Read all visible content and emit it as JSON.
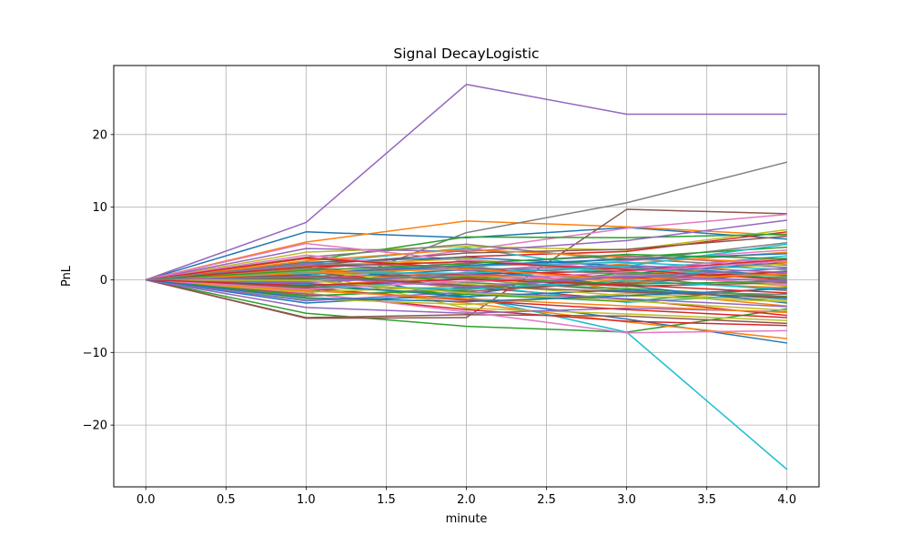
{
  "chart_data": {
    "type": "line",
    "title": "Signal DecayLogistic",
    "xlabel": "minute",
    "ylabel": "PnL",
    "x": [
      0,
      1,
      2,
      3,
      4
    ],
    "xlim": [
      -0.2,
      4.2
    ],
    "ylim": [
      -28.5,
      29.5
    ],
    "xticks": [
      0.0,
      0.5,
      1.0,
      1.5,
      2.0,
      2.5,
      3.0,
      3.5,
      4.0
    ],
    "xtick_labels": [
      "0.0",
      "0.5",
      "1.0",
      "1.5",
      "2.0",
      "2.5",
      "3.0",
      "3.5",
      "4.0"
    ],
    "yticks": [
      -20,
      -10,
      0,
      10,
      20
    ],
    "ytick_labels": [
      "−20",
      "−10",
      "0",
      "10",
      "20"
    ],
    "grid": true,
    "legend": false,
    "palette": [
      "#1f77b4",
      "#ff7f0e",
      "#2ca02c",
      "#d62728",
      "#9467bd",
      "#8c564b",
      "#e377c2",
      "#7f7f7f",
      "#bcbd22",
      "#17becf"
    ],
    "series": [
      {
        "color": "#1f77b4",
        "values": [
          0,
          6.6,
          5.8,
          7.2,
          5.6
        ]
      },
      {
        "color": "#ff7f0e",
        "values": [
          0,
          5.2,
          8.1,
          7.3,
          6.1
        ]
      },
      {
        "color": "#2ca02c",
        "values": [
          0,
          -4.6,
          -6.4,
          -7.2,
          -4.0
        ]
      },
      {
        "color": "#d62728",
        "values": [
          0,
          1.5,
          3.2,
          3.9,
          6.6
        ]
      },
      {
        "color": "#9467bd",
        "values": [
          0,
          7.9,
          26.9,
          22.8,
          22.8
        ]
      },
      {
        "color": "#8c564b",
        "values": [
          0,
          -5.3,
          -5.2,
          9.7,
          9.1
        ]
      },
      {
        "color": "#e377c2",
        "values": [
          0,
          1.2,
          4.1,
          7.1,
          9.0
        ]
      },
      {
        "color": "#7f7f7f",
        "values": [
          0,
          -2.1,
          6.5,
          10.6,
          16.2
        ]
      },
      {
        "color": "#bcbd22",
        "values": [
          0,
          3.8,
          4.6,
          4.1,
          6.9
        ]
      },
      {
        "color": "#17becf",
        "values": [
          0,
          -2.8,
          -2.3,
          -7.2,
          -26.1
        ]
      },
      {
        "color": "#1f77b4",
        "values": [
          0,
          1.5,
          -2.6,
          -5.4,
          -8.7
        ]
      },
      {
        "color": "#ff7f0e",
        "values": [
          0,
          -1.0,
          -3.2,
          -5.8,
          -8.1
        ]
      },
      {
        "color": "#2ca02c",
        "values": [
          0,
          2.6,
          5.9,
          5.8,
          6.3
        ]
      },
      {
        "color": "#d62728",
        "values": [
          0,
          -1.9,
          -4.1,
          -5.7,
          -6.3
        ]
      },
      {
        "color": "#9467bd",
        "values": [
          0,
          4.3,
          3.9,
          5.4,
          8.2
        ]
      },
      {
        "color": "#8c564b",
        "values": [
          0,
          -5.2,
          -4.8,
          -5.0,
          -6.0
        ]
      },
      {
        "color": "#e377c2",
        "values": [
          0,
          -1.8,
          -4.4,
          -7.3,
          -7.0
        ]
      },
      {
        "color": "#7f7f7f",
        "values": [
          0,
          3.1,
          4.9,
          2.6,
          5.1
        ]
      },
      {
        "color": "#bcbd22",
        "values": [
          0,
          1.0,
          -3.9,
          -4.7,
          -5.6
        ]
      },
      {
        "color": "#17becf",
        "values": [
          0,
          2.2,
          4.4,
          1.3,
          3.3
        ]
      },
      {
        "color": "#1f77b4",
        "values": [
          0,
          -3.2,
          -2.0,
          0.8,
          2.4
        ]
      },
      {
        "color": "#ff7f0e",
        "values": [
          0,
          2.9,
          2.1,
          -1.6,
          -3.6
        ]
      },
      {
        "color": "#2ca02c",
        "values": [
          0,
          -1.6,
          0.9,
          3.1,
          4.5
        ]
      },
      {
        "color": "#d62728",
        "values": [
          0,
          0.6,
          -1.0,
          -2.7,
          -4.9
        ]
      },
      {
        "color": "#9467bd",
        "values": [
          0,
          -3.8,
          -4.6,
          -3.9,
          -4.4
        ]
      },
      {
        "color": "#8c564b",
        "values": [
          0,
          2.0,
          3.7,
          4.2,
          6.0
        ]
      },
      {
        "color": "#e377c2",
        "values": [
          0,
          5.0,
          2.6,
          1.1,
          -0.8
        ]
      },
      {
        "color": "#7f7f7f",
        "values": [
          0,
          0.4,
          1.8,
          2.9,
          1.7
        ]
      },
      {
        "color": "#bcbd22",
        "values": [
          0,
          -2.6,
          -3.4,
          -1.9,
          -2.8
        ]
      },
      {
        "color": "#17becf",
        "values": [
          0,
          1.3,
          -0.7,
          -3.1,
          -1.9
        ]
      },
      {
        "color": "#1f77b4",
        "values": [
          0,
          2.4,
          3.1,
          1.9,
          0.6
        ]
      },
      {
        "color": "#ff7f0e",
        "values": [
          0,
          -0.8,
          0.5,
          2.2,
          3.8
        ]
      },
      {
        "color": "#2ca02c",
        "values": [
          0,
          1.7,
          -0.4,
          -1.2,
          -2.3
        ]
      },
      {
        "color": "#d62728",
        "values": [
          0,
          -1.2,
          -2.8,
          -4.1,
          -5.2
        ]
      },
      {
        "color": "#9467bd",
        "values": [
          0,
          0.9,
          2.3,
          3.3,
          2.0
        ]
      },
      {
        "color": "#8c564b",
        "values": [
          0,
          -0.5,
          -1.6,
          -0.3,
          1.2
        ]
      },
      {
        "color": "#e377c2",
        "values": [
          0,
          3.4,
          1.2,
          2.6,
          4.1
        ]
      },
      {
        "color": "#7f7f7f",
        "values": [
          0,
          -2.3,
          -1.1,
          0.4,
          -1.5
        ]
      },
      {
        "color": "#bcbd22",
        "values": [
          0,
          1.9,
          2.9,
          0.9,
          -0.9
        ]
      },
      {
        "color": "#17becf",
        "values": [
          0,
          -1.4,
          0.3,
          1.6,
          0.2
        ]
      },
      {
        "color": "#1f77b4",
        "values": [
          0,
          0.2,
          1.4,
          -0.8,
          -3.2
        ]
      },
      {
        "color": "#ff7f0e",
        "values": [
          0,
          2.6,
          4.2,
          3.1,
          2.4
        ]
      },
      {
        "color": "#2ca02c",
        "values": [
          0,
          -0.9,
          -2.0,
          -3.0,
          -1.0
        ]
      },
      {
        "color": "#d62728",
        "values": [
          0,
          3.0,
          1.6,
          0.2,
          1.1
        ]
      },
      {
        "color": "#9467bd",
        "values": [
          0,
          -2.9,
          -1.7,
          -2.6,
          -3.7
        ]
      },
      {
        "color": "#8c564b",
        "values": [
          0,
          1.1,
          -1.2,
          -0.5,
          0.9
        ]
      },
      {
        "color": "#e377c2",
        "values": [
          0,
          -0.2,
          2.7,
          1.5,
          3.0
        ]
      },
      {
        "color": "#7f7f7f",
        "values": [
          0,
          1.6,
          0.1,
          -1.6,
          -2.0
        ]
      },
      {
        "color": "#bcbd22",
        "values": [
          0,
          -1.7,
          -0.9,
          0.7,
          2.2
        ]
      },
      {
        "color": "#17becf",
        "values": [
          0,
          0.7,
          1.9,
          2.4,
          1.4
        ]
      },
      {
        "color": "#1f77b4",
        "values": [
          0,
          -0.6,
          -2.3,
          -1.4,
          -2.6
        ]
      },
      {
        "color": "#ff7f0e",
        "values": [
          0,
          1.4,
          0.6,
          -0.2,
          -1.1
        ]
      },
      {
        "color": "#2ca02c",
        "values": [
          0,
          -2.2,
          -1.4,
          1.0,
          0.3
        ]
      },
      {
        "color": "#d62728",
        "values": [
          0,
          0.3,
          0.8,
          1.2,
          2.8
        ]
      },
      {
        "color": "#9467bd",
        "values": [
          0,
          2.1,
          1.3,
          2.0,
          1.0
        ]
      },
      {
        "color": "#8c564b",
        "values": [
          0,
          -1.1,
          0.2,
          -0.9,
          -0.4
        ]
      },
      {
        "color": "#e377c2",
        "values": [
          0,
          0.5,
          -0.3,
          0.6,
          -0.6
        ]
      },
      {
        "color": "#7f7f7f",
        "values": [
          0,
          -0.3,
          1.0,
          1.7,
          0.5
        ]
      },
      {
        "color": "#bcbd22",
        "values": [
          0,
          1.2,
          -0.6,
          -2.2,
          -3.0
        ]
      },
      {
        "color": "#17becf",
        "values": [
          0,
          -0.7,
          -1.3,
          -0.1,
          -1.3
        ]
      },
      {
        "color": "#1f77b4",
        "values": [
          0,
          0.8,
          2.0,
          2.8,
          3.6
        ]
      },
      {
        "color": "#ff7f0e",
        "values": [
          0,
          -1.5,
          -2.6,
          -3.6,
          -4.5
        ]
      },
      {
        "color": "#2ca02c",
        "values": [
          0,
          0.1,
          0.4,
          -0.6,
          -0.2
        ]
      },
      {
        "color": "#d62728",
        "values": [
          0,
          1.8,
          2.5,
          1.4,
          0.0
        ]
      },
      {
        "color": "#9467bd",
        "values": [
          0,
          -0.4,
          0.7,
          0.3,
          1.6
        ]
      },
      {
        "color": "#8c564b",
        "values": [
          0,
          0.6,
          -0.8,
          -1.7,
          -2.4
        ]
      },
      {
        "color": "#e377c2",
        "values": [
          0,
          -1.3,
          -0.2,
          1.1,
          2.6
        ]
      },
      {
        "color": "#7f7f7f",
        "values": [
          0,
          2.3,
          1.7,
          0.8,
          -0.3
        ]
      },
      {
        "color": "#bcbd22",
        "values": [
          0,
          -0.1,
          -1.8,
          -2.9,
          -4.2
        ]
      },
      {
        "color": "#17becf",
        "values": [
          0,
          1.0,
          0.9,
          1.9,
          4.9
        ]
      },
      {
        "color": "#1f77b4",
        "values": [
          0,
          -2.5,
          -3.0,
          -2.2,
          -1.2
        ]
      },
      {
        "color": "#ff7f0e",
        "values": [
          0,
          0.9,
          1.5,
          0.0,
          0.8
        ]
      },
      {
        "color": "#2ca02c",
        "values": [
          0,
          1.3,
          2.2,
          3.5,
          2.9
        ]
      },
      {
        "color": "#d62728",
        "values": [
          0,
          -0.8,
          0.1,
          -0.7,
          -1.8
        ]
      },
      {
        "color": "#9467bd",
        "values": [
          0,
          0.4,
          -1.0,
          0.5,
          -0.1
        ]
      }
    ]
  }
}
